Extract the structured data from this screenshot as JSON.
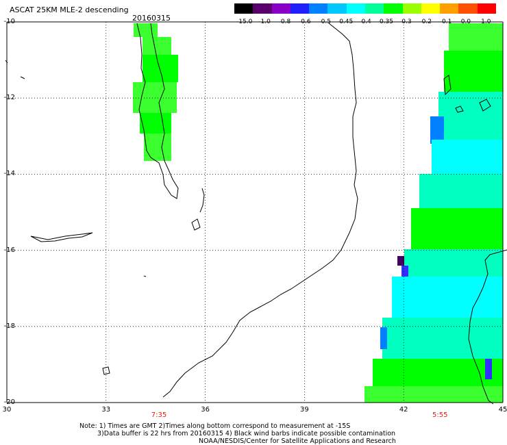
{
  "header": {
    "title": "ASCAT 25KM MLE-2 descending",
    "date": "20160315"
  },
  "colorbar": {
    "labels": [
      "-15.0",
      "-1.0",
      "-0.8",
      "-0.6",
      "-0.5",
      "-0.45",
      "-0.4",
      "-0.35",
      "-0.3",
      "-0.2",
      "-0.1",
      "0.0",
      "1.0"
    ],
    "colors": [
      "#000000",
      "#5a006a",
      "#8a00c8",
      "#2020ff",
      "#0080ff",
      "#00c8ff",
      "#00ffff",
      "#00ff9a",
      "#00ff00",
      "#9aff00",
      "#ffff00",
      "#ffa000",
      "#ff5000",
      "#ff0000"
    ]
  },
  "axes": {
    "lat_labels": [
      "-10",
      "-12",
      "-14",
      "-16",
      "-18",
      "-20"
    ],
    "lon_labels": [
      "30",
      "33",
      "36",
      "39",
      "42",
      "45"
    ],
    "lat_range": [
      -20,
      -10
    ],
    "lon_range": [
      30,
      45
    ]
  },
  "passes": [
    {
      "time": "7:35",
      "lon": 34.6
    },
    {
      "time": "5:55",
      "lon": 43.1
    }
  ],
  "notes": [
    "Note: 1) Times are GMT 2)Times along bottom correspond to measurement at -15S",
    "3)Data buffer is 22 hrs from 20160315 4) Black wind barbs indicate possible contamination",
    "NOAA/NESDIS/Center for Satellite Applications and Research"
  ],
  "legend_colors": {
    "green": "#00ff00",
    "light_green": "#3cff30",
    "cyan": "#00ffff",
    "teal": "#00ffc0",
    "blue": "#0080ff",
    "dark_blue": "#3030ff",
    "purple": "#400060"
  }
}
